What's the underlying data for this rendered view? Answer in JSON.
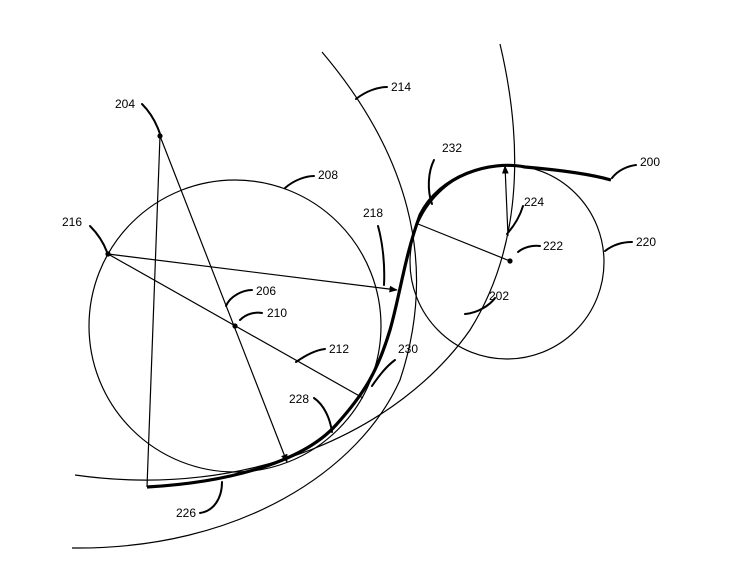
{
  "figure": {
    "labels": {
      "l200": "200",
      "l202": "202",
      "l204": "204",
      "l206": "206",
      "l208": "208",
      "l210": "210",
      "l212": "212",
      "l214": "214",
      "l216": "216",
      "l218": "218",
      "l220": "220",
      "l222": "222",
      "l224": "224",
      "l226": "226",
      "l228": "228",
      "l230": "230",
      "l232": "232"
    }
  }
}
